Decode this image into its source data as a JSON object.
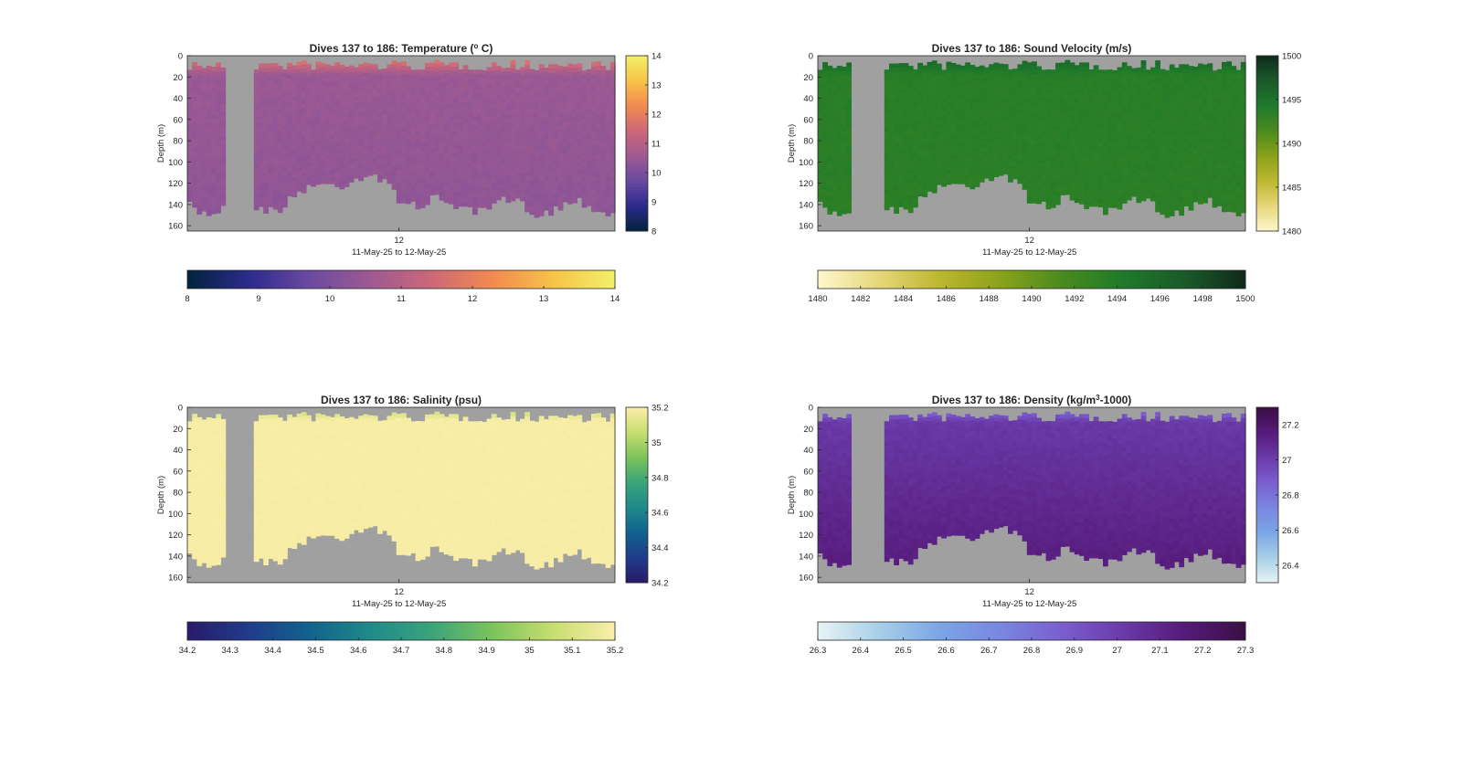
{
  "figure": {
    "background": "#ffffff",
    "missing_color": "#a0a0a0"
  },
  "chart_data": [
    {
      "id": "temperature",
      "type": "heatmap",
      "title": "Dives 137 to 186: Temperature (° C)",
      "title_parts": [
        "Dives 137 to 186: Temperature (",
        "o",
        " C)"
      ],
      "title_superscript_index": 1,
      "xlabel": "11-May-25 to 12-May-25",
      "x_ticks": [
        "12"
      ],
      "ylabel": "Depth (m)",
      "y_ticks": [
        0,
        20,
        40,
        60,
        80,
        100,
        120,
        140,
        160
      ],
      "ylim": [
        0,
        165
      ],
      "y_reversed": true,
      "colormap": "thermal",
      "colormap_stops": [
        "#03233c",
        "#2c2a8c",
        "#6a4aa0",
        "#9e5a92",
        "#cc6878",
        "#f28a4f",
        "#f7c448",
        "#f1f06a"
      ],
      "clim": [
        8,
        14
      ],
      "side_colorbar_ticks": [
        8,
        9,
        10,
        11,
        12,
        13,
        14
      ],
      "bottom_colorbar_ticks": [
        8,
        9,
        10,
        11,
        12,
        13,
        14
      ],
      "surface_value": 12.3,
      "body_value": 10.5,
      "deep_value": 10.3,
      "surface_depth": 18,
      "no_data_gap": [
        0.085,
        0.16
      ],
      "noise": 0.18
    },
    {
      "id": "sound_velocity",
      "type": "heatmap",
      "title": "Dives 137 to 186: Sound Velocity (m/s)",
      "title_parts": [
        "Dives 137 to 186: Sound Velocity (m/s)"
      ],
      "xlabel": "",
      "x_ticks": [
        "12"
      ],
      "ylabel": "Depth (m)",
      "y_ticks": [
        0,
        20,
        40,
        60,
        80,
        100,
        120,
        140,
        160
      ],
      "ylim": [
        0,
        165
      ],
      "y_reversed": true,
      "colormap": "speed",
      "colormap_stops": [
        "#fdf7cc",
        "#e6d77a",
        "#bcb72e",
        "#8aa21a",
        "#4a8a1e",
        "#1e7a2a",
        "#1a5a2a",
        "#102a1a"
      ],
      "clim": [
        1480,
        1500
      ],
      "side_colorbar_ticks": [
        1480,
        1485,
        1490,
        1495,
        1500
      ],
      "bottom_colorbar_ticks": [
        1480,
        1482,
        1484,
        1486,
        1488,
        1490,
        1492,
        1494,
        1496,
        1498,
        1500
      ],
      "surface_value": 1496.8,
      "body_value": 1493.6,
      "deep_value": 1493.4,
      "surface_depth": 18,
      "no_data_gap": [
        0.08,
        0.16
      ],
      "noise": 0.5
    },
    {
      "id": "salinity",
      "type": "heatmap",
      "title": "Dives 137 to 186: Salinity (psu)",
      "title_parts": [
        "Dives 137 to 186: Salinity (psu)"
      ],
      "xlabel": "11-May-25 to 12-May-25",
      "x_ticks": [
        "12"
      ],
      "ylabel": "Depth (m)",
      "y_ticks": [
        0,
        20,
        40,
        60,
        80,
        100,
        120,
        140,
        160
      ],
      "ylim": [
        0,
        165
      ],
      "y_reversed": true,
      "colormap": "haline",
      "colormap_stops": [
        "#2a1a6a",
        "#1f3c8a",
        "#11628e",
        "#1f8a8a",
        "#3aa47a",
        "#7cc45a",
        "#c8de70",
        "#fbeeaa"
      ],
      "clim": [
        34.2,
        35.2
      ],
      "side_colorbar_ticks": [
        34.2,
        34.4,
        34.6,
        34.8,
        35,
        35.2
      ],
      "bottom_colorbar_ticks": [
        34.2,
        34.3,
        34.4,
        34.5,
        34.6,
        34.7,
        34.8,
        34.9,
        35,
        35.1,
        35.2
      ],
      "surface_value": 35.02,
      "body_value": 35.19,
      "deep_value": 35.19,
      "surface_depth": 12,
      "no_data_gap": [
        0.085,
        0.16
      ],
      "noise": 0.01
    },
    {
      "id": "density",
      "type": "heatmap",
      "title": "Dives 137 to 186: Density (kg/m³-1000)",
      "title_parts": [
        "Dives 137 to 186: Density (kg/m",
        "3",
        "-1000)"
      ],
      "title_superscript_index": 1,
      "xlabel": "11-May-25 to 12-May-25",
      "x_ticks": [
        "12"
      ],
      "ylabel": "Depth (m)",
      "y_ticks": [
        0,
        20,
        40,
        60,
        80,
        100,
        120,
        140,
        160
      ],
      "ylim": [
        0,
        165
      ],
      "y_reversed": true,
      "colormap": "dense",
      "colormap_stops": [
        "#e8f4f4",
        "#a8cfe8",
        "#7aa6e6",
        "#7a86e0",
        "#7a5ed0",
        "#6a3aa8",
        "#561a7a",
        "#3a0f44"
      ],
      "clim": [
        26.3,
        27.3
      ],
      "side_colorbar_ticks": [
        26.4,
        26.6,
        26.8,
        27,
        27.2
      ],
      "bottom_colorbar_ticks": [
        26.3,
        26.4,
        26.5,
        26.6,
        26.7,
        26.8,
        26.9,
        27,
        27.1,
        27.2,
        27.3
      ],
      "surface_value": 26.75,
      "body_value": 27.02,
      "deep_value": 27.16,
      "surface_depth": 14,
      "no_data_gap": [
        0.08,
        0.16
      ],
      "noise": 0.03
    }
  ]
}
